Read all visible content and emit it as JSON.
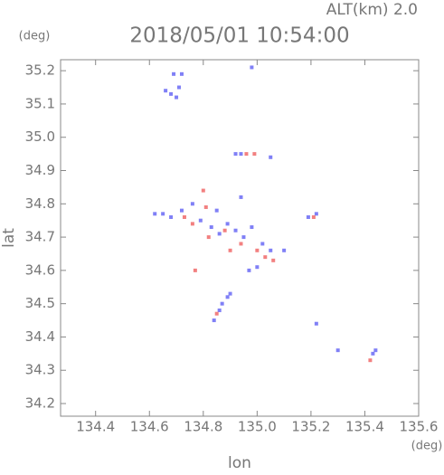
{
  "chart_data": {
    "type": "scatter",
    "title": "2018/05/01 10:54:00",
    "subtitle": "ALT(km) 2.0",
    "xlabel": "lon",
    "ylabel": "lat",
    "xunit": "(deg)",
    "yunit": "(deg)",
    "xlim": [
      134.27,
      135.6
    ],
    "ylim": [
      34.162,
      35.233
    ],
    "xticks": [
      134.4,
      134.6,
      134.8,
      {
        "value": 135,
        "label": "135.0"
      },
      135.2,
      135.4,
      135.6
    ],
    "yticks": [
      34.2,
      34.3,
      34.4,
      34.5,
      34.6,
      34.7,
      34.8,
      34.9,
      {
        "value": 35,
        "label": "35.0"
      },
      35.1,
      35.2
    ],
    "series": [
      {
        "color": "#6a6af5",
        "x": [
          134.66,
          134.68,
          134.7,
          134.71,
          134.69,
          134.72,
          134.98,
          134.92,
          134.94,
          135.05,
          134.62,
          134.65,
          134.68,
          134.72,
          134.76,
          134.79,
          134.83,
          134.86,
          134.89,
          134.92,
          134.95,
          134.98,
          135.02,
          135.05,
          134.97,
          135.0,
          134.87,
          134.89,
          134.86,
          134.84,
          134.9,
          135.19,
          135.22,
          135.22,
          135.3,
          135.43,
          135.44,
          134.94,
          135.1,
          134.85
        ],
        "y": [
          35.14,
          35.13,
          35.12,
          35.15,
          35.19,
          35.19,
          35.21,
          34.95,
          34.95,
          34.94,
          34.77,
          34.77,
          34.76,
          34.78,
          34.8,
          34.75,
          34.73,
          34.71,
          34.74,
          34.72,
          34.7,
          34.73,
          34.68,
          34.66,
          34.6,
          34.61,
          34.5,
          34.52,
          34.48,
          34.45,
          34.53,
          34.76,
          34.77,
          34.44,
          34.36,
          34.35,
          34.36,
          34.82,
          34.66,
          34.78
        ]
      },
      {
        "color": "#f06a6a",
        "x": [
          134.96,
          134.99,
          134.8,
          134.81,
          134.76,
          134.82,
          134.9,
          134.94,
          135.03,
          135.06,
          135.0,
          134.85,
          134.77,
          135.21,
          135.42,
          134.88,
          134.73
        ],
        "y": [
          34.95,
          34.95,
          34.84,
          34.79,
          34.74,
          34.7,
          34.66,
          34.68,
          34.64,
          34.63,
          34.66,
          34.47,
          34.6,
          34.76,
          34.33,
          34.72,
          34.76
        ]
      }
    ]
  }
}
